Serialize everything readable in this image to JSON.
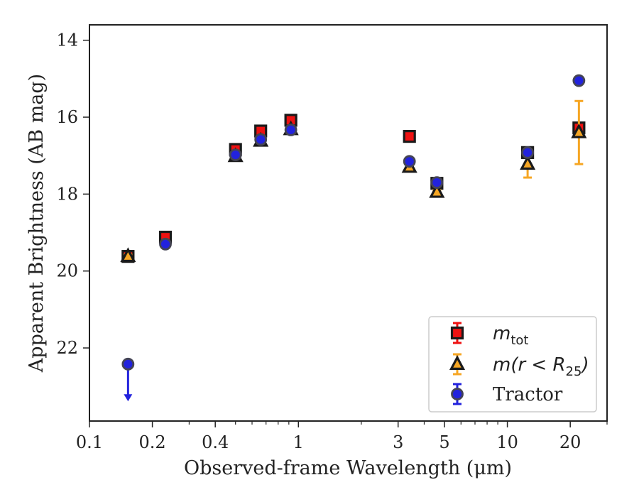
{
  "chart_data": {
    "type": "scatter",
    "xlabel": "Observed-frame Wavelength (μm)",
    "ylabel": "Apparent Brightness (AB mag)",
    "xscale": "log",
    "xlim": [
      0.1,
      30
    ],
    "ylim": [
      23.9,
      13.6
    ],
    "y_inverted": true,
    "grid": false,
    "legend_position": "lower right",
    "x_ticks": [
      {
        "value": 0.1,
        "label": "0.1"
      },
      {
        "value": 0.2,
        "label": "0.2"
      },
      {
        "value": 0.4,
        "label": "0.4"
      },
      {
        "value": 1,
        "label": "1"
      },
      {
        "value": 3,
        "label": "3"
      },
      {
        "value": 5,
        "label": "5"
      },
      {
        "value": 10,
        "label": "10"
      },
      {
        "value": 20,
        "label": "20"
      }
    ],
    "y_ticks": [
      {
        "value": 14,
        "label": "14"
      },
      {
        "value": 16,
        "label": "16"
      },
      {
        "value": 18,
        "label": "18"
      },
      {
        "value": 20,
        "label": "20"
      },
      {
        "value": 22,
        "label": "22"
      }
    ],
    "series": [
      {
        "name": "m_tot",
        "marker": "square",
        "color": "#ee1111",
        "edge_color": "#1a1a1a",
        "error_color": "#ee1111",
        "points": [
          {
            "x": 0.153,
            "y": 19.62,
            "err": 0.08
          },
          {
            "x": 0.231,
            "y": 19.12,
            "err": 0.06
          },
          {
            "x": 0.5,
            "y": 16.84,
            "err": 0.05
          },
          {
            "x": 0.66,
            "y": 16.36,
            "err": 0.05
          },
          {
            "x": 0.92,
            "y": 16.08,
            "err": 0.05
          },
          {
            "x": 3.4,
            "y": 16.5,
            "err": 0.03
          },
          {
            "x": 4.6,
            "y": 17.72,
            "err": 0.04
          },
          {
            "x": 12.5,
            "y": 16.92,
            "err": 0.05
          },
          {
            "x": 22.0,
            "y": 16.28,
            "err": 0.05
          }
        ]
      },
      {
        "name": "m(r<R25)",
        "marker": "triangle",
        "color": "#f6a623",
        "edge_color": "#1a1a1a",
        "error_color": "#f6a623",
        "points": [
          {
            "x": 0.153,
            "y": 19.62,
            "err": 0.05
          },
          {
            "x": 0.5,
            "y": 17.02,
            "err": 0.05
          },
          {
            "x": 0.66,
            "y": 16.62,
            "err": 0.05
          },
          {
            "x": 0.92,
            "y": 16.32,
            "err": 0.05
          },
          {
            "x": 3.4,
            "y": 17.3,
            "err": 0.05
          },
          {
            "x": 4.6,
            "y": 17.95,
            "err": 0.05
          },
          {
            "x": 12.5,
            "y": 17.22,
            "err": 0.35
          },
          {
            "x": 22.0,
            "y": 16.4,
            "err": 0.82
          }
        ]
      },
      {
        "name": "Tractor",
        "marker": "circle",
        "color": "#2222dd",
        "edge_color": "#444455",
        "error_color": "#2222dd",
        "points": [
          {
            "x": 0.153,
            "y": 22.42,
            "upper_limit": true,
            "limit_to": 23.35
          },
          {
            "x": 0.231,
            "y": 19.3,
            "err": 0.05
          },
          {
            "x": 0.5,
            "y": 16.98,
            "err": 0.05
          },
          {
            "x": 0.66,
            "y": 16.58,
            "err": 0.05
          },
          {
            "x": 0.92,
            "y": 16.33,
            "err": 0.05
          },
          {
            "x": 3.4,
            "y": 17.15,
            "err": 0.05
          },
          {
            "x": 4.6,
            "y": 17.7,
            "err": 0.05
          },
          {
            "x": 12.5,
            "y": 16.92,
            "err": 0.05
          },
          {
            "x": 22.0,
            "y": 15.05,
            "err": 0.05
          }
        ]
      }
    ],
    "legend": [
      {
        "series": "m_tot",
        "label_main": "m",
        "label_sub": "tot",
        "label_tail": ""
      },
      {
        "series": "m(r<R25)",
        "label_main": "m(r < R",
        "label_sub": "25",
        "label_tail": ")"
      },
      {
        "series": "Tractor",
        "label_main": "Tractor",
        "label_sub": "",
        "label_tail": ""
      }
    ]
  }
}
